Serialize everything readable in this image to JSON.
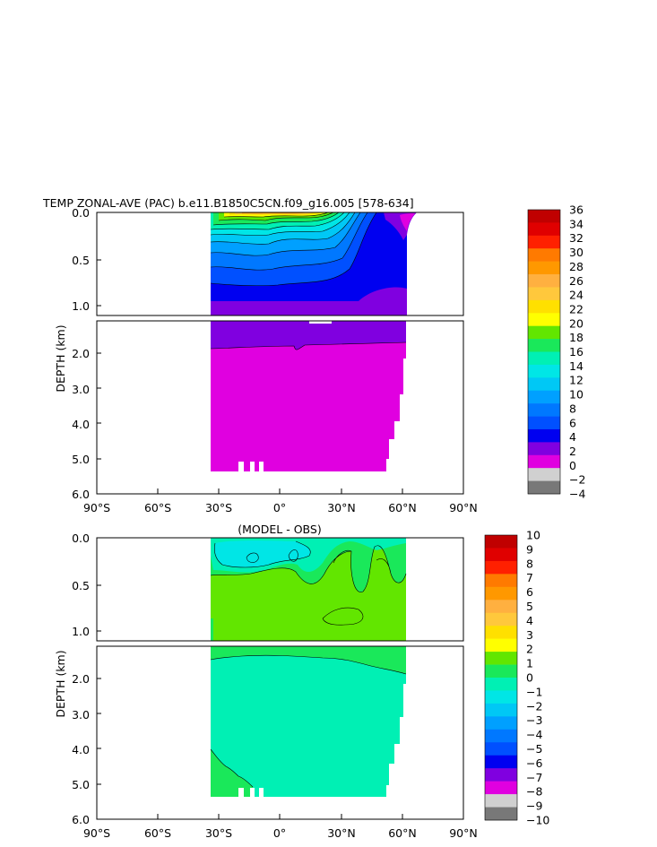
{
  "chart_data": [
    {
      "type": "heatmap",
      "title": "TEMP ZONAL-AVE (PAC) b.e11.B1850C5CN.f09_g16.005 [578-634]",
      "ylabel": "DEPTH (km)",
      "x_ticks": [
        "90°S",
        "60°S",
        "30°S",
        "0°",
        "30°N",
        "60°N",
        "90°N"
      ],
      "xlim": [
        -90,
        90
      ],
      "upper_y_ticks": [
        "0.0",
        "0.5",
        "1.0"
      ],
      "lower_y_ticks": [
        "2.0",
        "3.0",
        "4.0",
        "5.0",
        "6.0"
      ],
      "ylim_upper": [
        0,
        1.1
      ],
      "ylim_lower": [
        1.1,
        6.0
      ],
      "colorbar": {
        "levels": [
          "36",
          "34",
          "32",
          "30",
          "28",
          "26",
          "24",
          "22",
          "20",
          "18",
          "16",
          "14",
          "12",
          "10",
          "8",
          "6",
          "4",
          "2",
          "0",
          "−2",
          "−4"
        ],
        "colors": [
          "#c00000",
          "#e00000",
          "#ff2000",
          "#ff7a00",
          "#ff9800",
          "#ffb040",
          "#ffc83c",
          "#ffe000",
          "#ffff00",
          "#62e600",
          "#1ae85a",
          "#00f0b4",
          "#00e6e6",
          "#00c8f5",
          "#00a0ff",
          "#0078ff",
          "#0050ff",
          "#0000f0",
          "#8000e0",
          "#e000e0",
          "#d0d0d0",
          "#787878"
        ]
      }
    },
    {
      "type": "heatmap",
      "title": "(MODEL - OBS)",
      "ylabel": "DEPTH (km)",
      "x_ticks": [
        "90°S",
        "60°S",
        "30°S",
        "0°",
        "30°N",
        "60°N",
        "90°N"
      ],
      "xlim": [
        -90,
        90
      ],
      "upper_y_ticks": [
        "0.0",
        "0.5",
        "1.0"
      ],
      "lower_y_ticks": [
        "2.0",
        "3.0",
        "4.0",
        "5.0",
        "6.0"
      ],
      "ylim_upper": [
        0,
        1.1
      ],
      "ylim_lower": [
        1.1,
        6.0
      ],
      "colorbar": {
        "levels": [
          "10",
          "9",
          "8",
          "7",
          "6",
          "5",
          "4",
          "3",
          "2",
          "1",
          "0",
          "−1",
          "−2",
          "−3",
          "−4",
          "−5",
          "−6",
          "−7",
          "−8",
          "−9",
          "−10"
        ],
        "colors": [
          "#c00000",
          "#e00000",
          "#ff2000",
          "#ff7a00",
          "#ff9800",
          "#ffb040",
          "#ffc83c",
          "#ffe000",
          "#ffff00",
          "#62e600",
          "#1ae85a",
          "#00f0b4",
          "#00e6e6",
          "#00c8f5",
          "#00a0ff",
          "#0078ff",
          "#0050ff",
          "#0000f0",
          "#8000e0",
          "#e000e0",
          "#d0d0d0",
          "#787878"
        ]
      }
    }
  ]
}
